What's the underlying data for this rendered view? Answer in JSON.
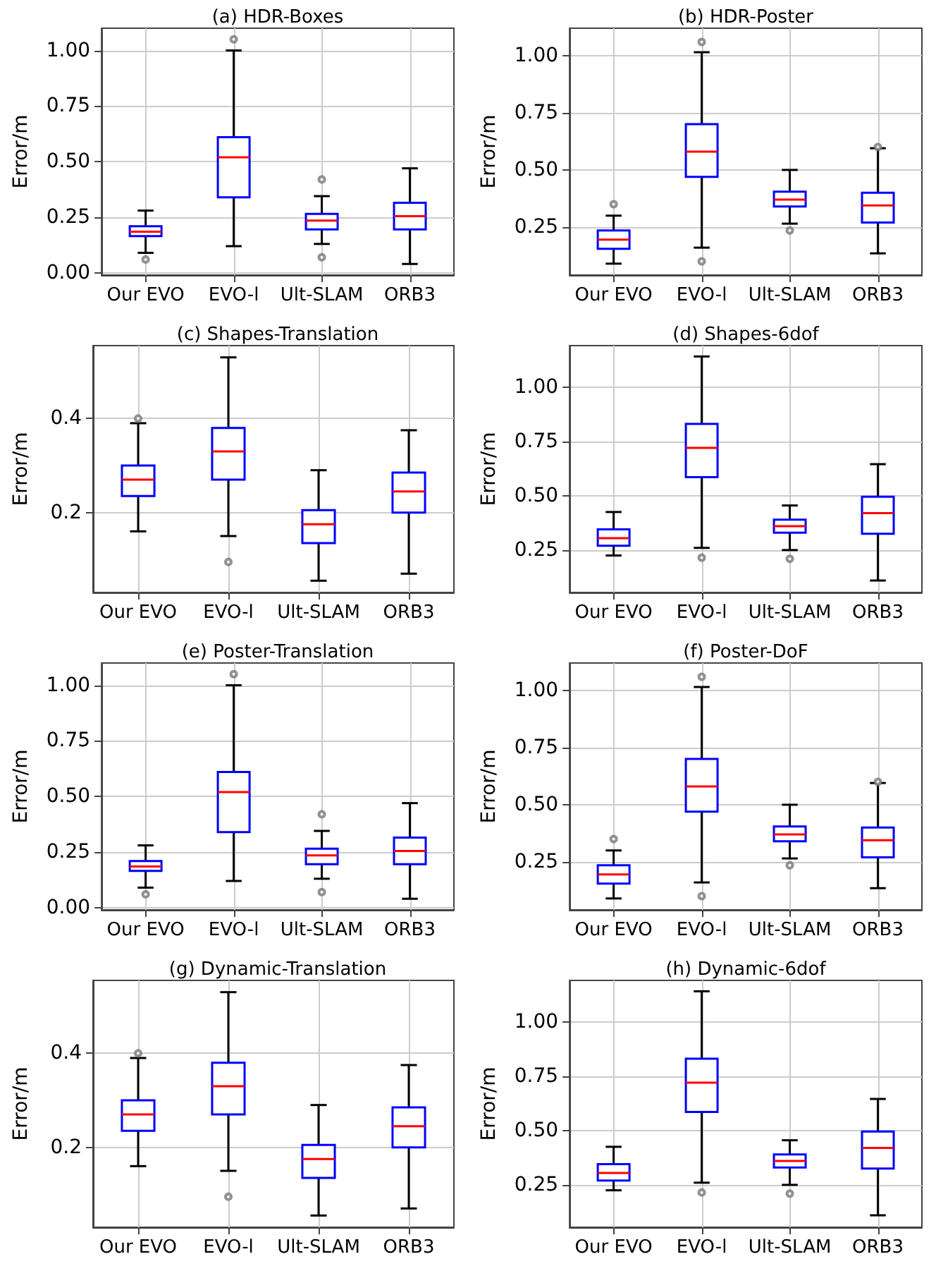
{
  "chart_data": [
    {
      "type": "box",
      "title": "(a) HDR-Boxes",
      "ylabel": "Error/m",
      "categories": [
        "Our EVO",
        "EVO-l",
        "Ult-SLAM",
        "ORB3"
      ],
      "ylim": [
        -0.01,
        1.1
      ],
      "yticks": [
        {
          "value": 0,
          "label": "0.00"
        },
        {
          "value": 0.25,
          "label": "0.25"
        },
        {
          "value": 0.5,
          "label": "0.50"
        },
        {
          "value": 0.75,
          "label": "0.75"
        },
        {
          "value": 1,
          "label": "1.00"
        }
      ],
      "grid": true,
      "series": [
        {
          "color": "#0000ff",
          "boxes": [
            {
              "low": 0.09,
              "q1": 0.165,
              "median": 0.185,
              "q3": 0.21,
              "high": 0.28,
              "outliers": [
                0.06
              ]
            },
            {
              "low": 0.12,
              "q1": 0.34,
              "median": 0.52,
              "q3": 0.61,
              "high": 1.0,
              "outliers": [
                1.05
              ]
            },
            {
              "low": 0.13,
              "q1": 0.195,
              "median": 0.235,
              "q3": 0.265,
              "high": 0.345,
              "outliers": [
                0.07,
                0.42
              ]
            },
            {
              "low": 0.04,
              "q1": 0.195,
              "median": 0.255,
              "q3": 0.315,
              "high": 0.47
            }
          ]
        }
      ]
    },
    {
      "type": "box",
      "title": "(b) HDR-Poster",
      "ylabel": "Error/m",
      "categories": [
        "Our EVO",
        "EVO-l",
        "Ult-SLAM",
        "ORB3"
      ],
      "ylim": [
        0.04,
        1.12
      ],
      "yticks": [
        {
          "value": 0.25,
          "label": "0.25"
        },
        {
          "value": 0.5,
          "label": "0.50"
        },
        {
          "value": 0.75,
          "label": "0.75"
        },
        {
          "value": 1,
          "label": "1.00"
        }
      ],
      "grid": true,
      "series": [
        {
          "color": "#0000ff",
          "boxes": [
            {
              "low": 0.09,
              "q1": 0.155,
              "median": 0.195,
              "q3": 0.235,
              "high": 0.3,
              "outliers": [
                0.35
              ]
            },
            {
              "low": 0.16,
              "q1": 0.47,
              "median": 0.58,
              "q3": 0.7,
              "high": 1.015,
              "outliers": [
                0.1,
                1.06
              ]
            },
            {
              "low": 0.265,
              "q1": 0.34,
              "median": 0.37,
              "q3": 0.405,
              "high": 0.5,
              "outliers": [
                0.235
              ]
            },
            {
              "low": 0.135,
              "q1": 0.27,
              "median": 0.345,
              "q3": 0.4,
              "high": 0.595,
              "outliers": [
                0.6
              ]
            }
          ]
        }
      ]
    },
    {
      "type": "box",
      "title": "(c) Shapes-Translation",
      "ylabel": "Error/m",
      "categories": [
        "Our EVO",
        "EVO-l",
        "Ult-SLAM",
        "ORB3"
      ],
      "ylim": [
        0.03,
        0.555
      ],
      "yticks": [
        {
          "value": 0.2,
          "label": "0.2"
        },
        {
          "value": 0.4,
          "label": "0.4"
        }
      ],
      "grid": true,
      "series": [
        {
          "color": "#0000ff",
          "boxes": [
            {
              "low": 0.16,
              "q1": 0.235,
              "median": 0.27,
              "q3": 0.3,
              "high": 0.39,
              "outliers": [
                0.4
              ]
            },
            {
              "low": 0.15,
              "q1": 0.27,
              "median": 0.33,
              "q3": 0.38,
              "high": 0.53,
              "outliers": [
                0.095
              ]
            },
            {
              "low": 0.055,
              "q1": 0.135,
              "median": 0.175,
              "q3": 0.205,
              "high": 0.29
            },
            {
              "low": 0.07,
              "q1": 0.2,
              "median": 0.245,
              "q3": 0.285,
              "high": 0.375
            }
          ]
        }
      ]
    },
    {
      "type": "box",
      "title": "(d) Shapes-6dof",
      "ylabel": "Error/m",
      "categories": [
        "Our EVO",
        "EVO-l",
        "Ult-SLAM",
        "ORB3"
      ],
      "ylim": [
        0.055,
        1.19
      ],
      "yticks": [
        {
          "value": 0.25,
          "label": "0.25"
        },
        {
          "value": 0.5,
          "label": "0.50"
        },
        {
          "value": 0.75,
          "label": "0.75"
        },
        {
          "value": 1,
          "label": "1.00"
        }
      ],
      "grid": true,
      "series": [
        {
          "color": "#0000ff",
          "boxes": [
            {
              "low": 0.225,
              "q1": 0.27,
              "median": 0.305,
              "q3": 0.345,
              "high": 0.425
            },
            {
              "low": 0.26,
              "q1": 0.585,
              "median": 0.72,
              "q3": 0.83,
              "high": 1.14,
              "outliers": [
                0.215
              ]
            },
            {
              "low": 0.25,
              "q1": 0.33,
              "median": 0.36,
              "q3": 0.39,
              "high": 0.455,
              "outliers": [
                0.21
              ]
            },
            {
              "low": 0.11,
              "q1": 0.325,
              "median": 0.42,
              "q3": 0.495,
              "high": 0.645
            }
          ]
        }
      ]
    },
    {
      "type": "box",
      "title": "(e) Poster-Translation",
      "ylabel": "Error/m",
      "categories": [
        "Our EVO",
        "EVO-l",
        "Ult-SLAM",
        "ORB3"
      ],
      "ylim": [
        -0.01,
        1.1
      ],
      "yticks": [
        {
          "value": 0,
          "label": "0.00"
        },
        {
          "value": 0.25,
          "label": "0.25"
        },
        {
          "value": 0.5,
          "label": "0.50"
        },
        {
          "value": 0.75,
          "label": "0.75"
        },
        {
          "value": 1,
          "label": "1.00"
        }
      ],
      "grid": true,
      "series": [
        {
          "color": "#0000ff",
          "boxes": [
            {
              "low": 0.09,
              "q1": 0.165,
              "median": 0.185,
              "q3": 0.21,
              "high": 0.28,
              "outliers": [
                0.06
              ]
            },
            {
              "low": 0.12,
              "q1": 0.34,
              "median": 0.52,
              "q3": 0.61,
              "high": 1.0,
              "outliers": [
                1.05
              ]
            },
            {
              "low": 0.13,
              "q1": 0.195,
              "median": 0.235,
              "q3": 0.265,
              "high": 0.345,
              "outliers": [
                0.07,
                0.42
              ]
            },
            {
              "low": 0.04,
              "q1": 0.195,
              "median": 0.255,
              "q3": 0.315,
              "high": 0.47
            }
          ]
        }
      ]
    },
    {
      "type": "box",
      "title": "(f) Poster-DoF",
      "ylabel": "Error/m",
      "categories": [
        "Our EVO",
        "EVO-l",
        "Ult-SLAM",
        "ORB3"
      ],
      "ylim": [
        0.04,
        1.12
      ],
      "yticks": [
        {
          "value": 0.25,
          "label": "0.25"
        },
        {
          "value": 0.5,
          "label": "0.50"
        },
        {
          "value": 0.75,
          "label": "0.75"
        },
        {
          "value": 1,
          "label": "1.00"
        }
      ],
      "grid": true,
      "series": [
        {
          "color": "#0000ff",
          "boxes": [
            {
              "low": 0.09,
              "q1": 0.155,
              "median": 0.195,
              "q3": 0.235,
              "high": 0.3,
              "outliers": [
                0.35
              ]
            },
            {
              "low": 0.16,
              "q1": 0.47,
              "median": 0.58,
              "q3": 0.7,
              "high": 1.015,
              "outliers": [
                0.1,
                1.06
              ]
            },
            {
              "low": 0.265,
              "q1": 0.34,
              "median": 0.37,
              "q3": 0.405,
              "high": 0.5,
              "outliers": [
                0.235
              ]
            },
            {
              "low": 0.135,
              "q1": 0.27,
              "median": 0.345,
              "q3": 0.4,
              "high": 0.595,
              "outliers": [
                0.6
              ]
            }
          ]
        }
      ]
    },
    {
      "type": "box",
      "title": "(g) Dynamic-Translation",
      "ylabel": "Error/m",
      "categories": [
        "Our EVO",
        "EVO-l",
        "Ult-SLAM",
        "ORB3"
      ],
      "ylim": [
        0.03,
        0.555
      ],
      "yticks": [
        {
          "value": 0.2,
          "label": "0.2"
        },
        {
          "value": 0.4,
          "label": "0.4"
        }
      ],
      "grid": true,
      "series": [
        {
          "color": "#0000ff",
          "boxes": [
            {
              "low": 0.16,
              "q1": 0.235,
              "median": 0.27,
              "q3": 0.3,
              "high": 0.39,
              "outliers": [
                0.4
              ]
            },
            {
              "low": 0.15,
              "q1": 0.27,
              "median": 0.33,
              "q3": 0.38,
              "high": 0.53,
              "outliers": [
                0.095
              ]
            },
            {
              "low": 0.055,
              "q1": 0.135,
              "median": 0.175,
              "q3": 0.205,
              "high": 0.29
            },
            {
              "low": 0.07,
              "q1": 0.2,
              "median": 0.245,
              "q3": 0.285,
              "high": 0.375
            }
          ]
        }
      ]
    },
    {
      "type": "box",
      "title": "(h) Dynamic-6dof",
      "ylabel": "Error/m",
      "categories": [
        "Our EVO",
        "EVO-l",
        "Ult-SLAM",
        "ORB3"
      ],
      "ylim": [
        0.055,
        1.19
      ],
      "yticks": [
        {
          "value": 0.25,
          "label": "0.25"
        },
        {
          "value": 0.5,
          "label": "0.50"
        },
        {
          "value": 0.75,
          "label": "0.75"
        },
        {
          "value": 1,
          "label": "1.00"
        }
      ],
      "grid": true,
      "series": [
        {
          "color": "#0000ff",
          "boxes": [
            {
              "low": 0.225,
              "q1": 0.27,
              "median": 0.305,
              "q3": 0.345,
              "high": 0.425
            },
            {
              "low": 0.26,
              "q1": 0.585,
              "median": 0.72,
              "q3": 0.83,
              "high": 1.14,
              "outliers": [
                0.215
              ]
            },
            {
              "low": 0.25,
              "q1": 0.33,
              "median": 0.36,
              "q3": 0.39,
              "high": 0.455,
              "outliers": [
                0.21
              ]
            },
            {
              "low": 0.11,
              "q1": 0.325,
              "median": 0.42,
              "q3": 0.495,
              "high": 0.645
            }
          ]
        }
      ]
    }
  ]
}
